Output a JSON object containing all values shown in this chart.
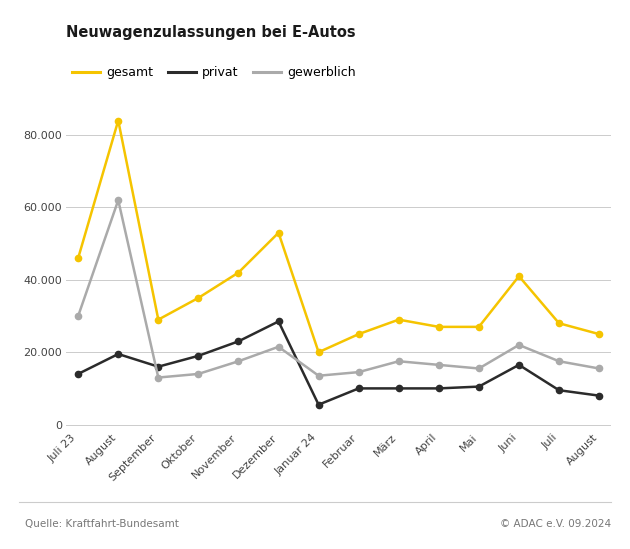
{
  "title": "Neuwagenzulassungen bei E-Autos",
  "categories": [
    "Juli 23",
    "August",
    "September",
    "Oktober",
    "November",
    "Dezember",
    "Januar 24",
    "Februar",
    "März",
    "April",
    "Mai",
    "Juni",
    "Juli",
    "August"
  ],
  "gesamt": [
    46000,
    84000,
    29000,
    35000,
    42000,
    53000,
    20000,
    25000,
    29000,
    27000,
    27000,
    41000,
    28000,
    25000
  ],
  "privat": [
    14000,
    19500,
    16000,
    19000,
    23000,
    28500,
    5500,
    10000,
    10000,
    10000,
    10500,
    16500,
    9500,
    8000
  ],
  "gewerblich": [
    30000,
    62000,
    13000,
    14000,
    17500,
    21500,
    13500,
    14500,
    17500,
    16500,
    15500,
    22000,
    17500,
    15500
  ],
  "gesamt_color": "#F5C400",
  "privat_color": "#2B2B2B",
  "gewerblich_color": "#AAAAAA",
  "ylabel_ticks": [
    0,
    20000,
    40000,
    60000,
    80000
  ],
  "ylabel_labels": [
    "0",
    "20.000",
    "40.000",
    "60.000",
    "80.000"
  ],
  "source_left": "Quelle: Kraftfahrt-Bundesamt",
  "source_right": "© ADAC e.V. 09.2024",
  "background_color": "#FFFFFF",
  "grid_color": "#CCCCCC",
  "title_fontsize": 10.5,
  "legend_fontsize": 9,
  "tick_fontsize": 8,
  "source_fontsize": 7.5,
  "line_width": 1.8,
  "marker_size": 4.5
}
